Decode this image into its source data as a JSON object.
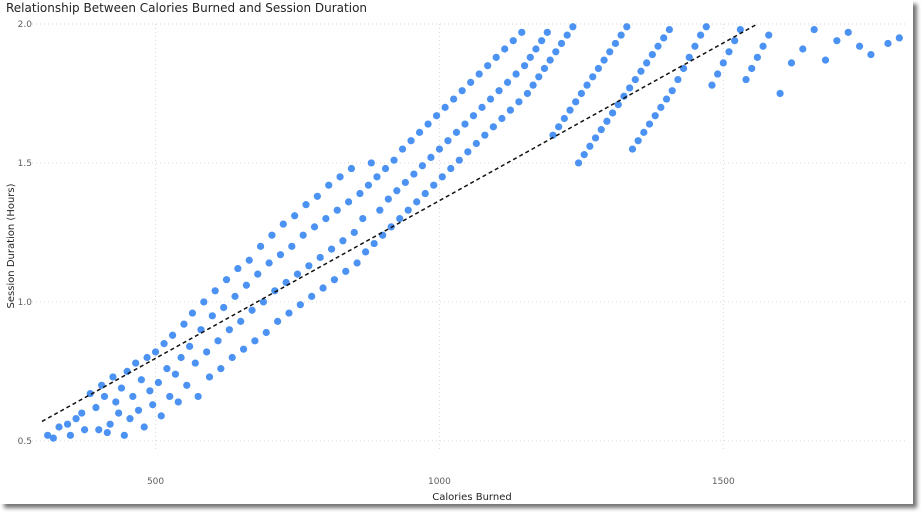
{
  "chart_data": {
    "type": "scatter",
    "title": "Relationship Between Calories Burned and Session Duration",
    "xlabel": "Calories Burned",
    "ylabel": "Session Duration (Hours)",
    "xlim": [
      300,
      1820
    ],
    "ylim": [
      0.46,
      2.0
    ],
    "x_ticks": [
      500,
      1000,
      1500
    ],
    "y_ticks": [
      0.5,
      1.0,
      1.5,
      2.0
    ],
    "x_tick_labels": [
      "500",
      "1000",
      "1500"
    ],
    "y_tick_labels": [
      "0.5",
      "1.0",
      "1.5",
      "2.0"
    ],
    "grid": "dotted",
    "marker_color": "#4b92f2",
    "trendline": {
      "style": "dashed",
      "color": "#111111",
      "points": [
        [
          300,
          0.57
        ],
        [
          1560,
          2.0
        ]
      ]
    },
    "series": [
      {
        "points": [
          [
            310,
            0.52
          ],
          [
            320,
            0.51
          ],
          [
            330,
            0.55
          ],
          [
            345,
            0.56
          ],
          [
            350,
            0.52
          ],
          [
            360,
            0.58
          ],
          [
            370,
            0.6
          ],
          [
            375,
            0.54
          ],
          [
            385,
            0.67
          ],
          [
            395,
            0.62
          ],
          [
            400,
            0.54
          ],
          [
            405,
            0.7
          ],
          [
            410,
            0.66
          ],
          [
            415,
            0.53
          ],
          [
            420,
            0.56
          ],
          [
            425,
            0.73
          ],
          [
            430,
            0.64
          ],
          [
            435,
            0.6
          ],
          [
            440,
            0.69
          ],
          [
            445,
            0.52
          ],
          [
            450,
            0.75
          ],
          [
            455,
            0.58
          ],
          [
            460,
            0.66
          ],
          [
            465,
            0.78
          ],
          [
            470,
            0.61
          ],
          [
            475,
            0.72
          ],
          [
            480,
            0.55
          ],
          [
            485,
            0.8
          ],
          [
            490,
            0.68
          ],
          [
            495,
            0.63
          ],
          [
            500,
            0.82
          ],
          [
            505,
            0.71
          ],
          [
            510,
            0.59
          ],
          [
            515,
            0.85
          ],
          [
            520,
            0.76
          ],
          [
            525,
            0.66
          ],
          [
            530,
            0.88
          ],
          [
            535,
            0.74
          ],
          [
            540,
            0.64
          ],
          [
            545,
            0.8
          ],
          [
            550,
            0.92
          ],
          [
            555,
            0.7
          ],
          [
            560,
            0.84
          ],
          [
            565,
            0.96
          ],
          [
            570,
            0.78
          ],
          [
            575,
            0.66
          ],
          [
            580,
            0.9
          ],
          [
            585,
            1.0
          ],
          [
            590,
            0.82
          ],
          [
            595,
            0.73
          ],
          [
            600,
            0.95
          ],
          [
            605,
            1.04
          ],
          [
            610,
            0.86
          ],
          [
            615,
            0.76
          ],
          [
            620,
            0.98
          ],
          [
            625,
            1.08
          ],
          [
            630,
            0.9
          ],
          [
            635,
            0.8
          ],
          [
            640,
            1.02
          ],
          [
            645,
            1.12
          ],
          [
            650,
            0.93
          ],
          [
            655,
            0.83
          ],
          [
            660,
            1.06
          ],
          [
            665,
            1.15
          ],
          [
            670,
            0.97
          ],
          [
            675,
            0.86
          ],
          [
            680,
            1.1
          ],
          [
            685,
            1.2
          ],
          [
            690,
            1.0
          ],
          [
            695,
            0.89
          ],
          [
            700,
            1.14
          ],
          [
            705,
            1.24
          ],
          [
            710,
            1.04
          ],
          [
            715,
            0.93
          ],
          [
            720,
            1.17
          ],
          [
            725,
            1.28
          ],
          [
            730,
            1.07
          ],
          [
            735,
            0.96
          ],
          [
            740,
            1.2
          ],
          [
            745,
            1.31
          ],
          [
            750,
            1.1
          ],
          [
            755,
            0.99
          ],
          [
            760,
            1.24
          ],
          [
            765,
            1.35
          ],
          [
            770,
            1.13
          ],
          [
            775,
            1.02
          ],
          [
            780,
            1.27
          ],
          [
            785,
            1.38
          ],
          [
            790,
            1.16
          ],
          [
            795,
            1.05
          ],
          [
            800,
            1.3
          ],
          [
            805,
            1.42
          ],
          [
            810,
            1.19
          ],
          [
            815,
            1.08
          ],
          [
            820,
            1.33
          ],
          [
            825,
            1.45
          ],
          [
            830,
            1.22
          ],
          [
            835,
            1.11
          ],
          [
            840,
            1.36
          ],
          [
            845,
            1.48
          ],
          [
            850,
            1.25
          ],
          [
            855,
            1.14
          ],
          [
            860,
            1.39
          ],
          [
            865,
            1.3
          ],
          [
            870,
            1.18
          ],
          [
            875,
            1.42
          ],
          [
            880,
            1.5
          ],
          [
            885,
            1.21
          ],
          [
            890,
            1.45
          ],
          [
            895,
            1.33
          ],
          [
            900,
            1.24
          ],
          [
            905,
            1.48
          ],
          [
            910,
            1.37
          ],
          [
            915,
            1.27
          ],
          [
            920,
            1.51
          ],
          [
            925,
            1.4
          ],
          [
            930,
            1.3
          ],
          [
            935,
            1.55
          ],
          [
            940,
            1.43
          ],
          [
            945,
            1.33
          ],
          [
            950,
            1.58
          ],
          [
            955,
            1.46
          ],
          [
            960,
            1.36
          ],
          [
            965,
            1.61
          ],
          [
            970,
            1.49
          ],
          [
            975,
            1.39
          ],
          [
            980,
            1.64
          ],
          [
            985,
            1.52
          ],
          [
            990,
            1.42
          ],
          [
            995,
            1.67
          ],
          [
            1000,
            1.55
          ],
          [
            1005,
            1.45
          ],
          [
            1010,
            1.7
          ],
          [
            1015,
            1.58
          ],
          [
            1020,
            1.48
          ],
          [
            1025,
            1.73
          ],
          [
            1030,
            1.61
          ],
          [
            1035,
            1.51
          ],
          [
            1040,
            1.76
          ],
          [
            1045,
            1.64
          ],
          [
            1050,
            1.54
          ],
          [
            1055,
            1.79
          ],
          [
            1060,
            1.67
          ],
          [
            1065,
            1.57
          ],
          [
            1070,
            1.82
          ],
          [
            1075,
            1.7
          ],
          [
            1080,
            1.6
          ],
          [
            1085,
            1.85
          ],
          [
            1090,
            1.73
          ],
          [
            1095,
            1.63
          ],
          [
            1100,
            1.88
          ],
          [
            1105,
            1.76
          ],
          [
            1110,
            1.66
          ],
          [
            1115,
            1.91
          ],
          [
            1120,
            1.79
          ],
          [
            1125,
            1.69
          ],
          [
            1130,
            1.94
          ],
          [
            1135,
            1.82
          ],
          [
            1140,
            1.72
          ],
          [
            1145,
            1.97
          ],
          [
            1150,
            1.85
          ],
          [
            1155,
            1.75
          ],
          [
            1160,
            1.88
          ],
          [
            1165,
            1.78
          ],
          [
            1170,
            1.91
          ],
          [
            1175,
            1.81
          ],
          [
            1180,
            1.94
          ],
          [
            1185,
            1.84
          ],
          [
            1190,
            1.97
          ],
          [
            1195,
            1.87
          ],
          [
            1200,
            1.6
          ],
          [
            1205,
            1.9
          ],
          [
            1210,
            1.63
          ],
          [
            1215,
            1.93
          ],
          [
            1220,
            1.66
          ],
          [
            1225,
            1.96
          ],
          [
            1230,
            1.69
          ],
          [
            1235,
            1.99
          ],
          [
            1240,
            1.72
          ],
          [
            1245,
            1.5
          ],
          [
            1250,
            1.75
          ],
          [
            1255,
            1.53
          ],
          [
            1260,
            1.78
          ],
          [
            1265,
            1.56
          ],
          [
            1270,
            1.81
          ],
          [
            1275,
            1.59
          ],
          [
            1280,
            1.84
          ],
          [
            1285,
            1.62
          ],
          [
            1290,
            1.87
          ],
          [
            1295,
            1.65
          ],
          [
            1300,
            1.9
          ],
          [
            1305,
            1.68
          ],
          [
            1310,
            1.93
          ],
          [
            1315,
            1.71
          ],
          [
            1320,
            1.96
          ],
          [
            1325,
            1.74
          ],
          [
            1330,
            1.99
          ],
          [
            1335,
            1.77
          ],
          [
            1340,
            1.55
          ],
          [
            1345,
            1.8
          ],
          [
            1350,
            1.58
          ],
          [
            1355,
            1.83
          ],
          [
            1360,
            1.61
          ],
          [
            1365,
            1.86
          ],
          [
            1370,
            1.64
          ],
          [
            1375,
            1.89
          ],
          [
            1380,
            1.67
          ],
          [
            1385,
            1.92
          ],
          [
            1390,
            1.7
          ],
          [
            1395,
            1.95
          ],
          [
            1400,
            1.73
          ],
          [
            1405,
            1.98
          ],
          [
            1410,
            1.76
          ],
          [
            1420,
            1.8
          ],
          [
            1430,
            1.84
          ],
          [
            1440,
            1.88
          ],
          [
            1450,
            1.92
          ],
          [
            1460,
            1.96
          ],
          [
            1470,
            1.99
          ],
          [
            1480,
            1.78
          ],
          [
            1490,
            1.82
          ],
          [
            1500,
            1.86
          ],
          [
            1510,
            1.9
          ],
          [
            1520,
            1.94
          ],
          [
            1530,
            1.98
          ],
          [
            1540,
            1.8
          ],
          [
            1550,
            1.84
          ],
          [
            1560,
            1.88
          ],
          [
            1570,
            1.92
          ],
          [
            1580,
            1.96
          ],
          [
            1600,
            1.75
          ],
          [
            1620,
            1.86
          ],
          [
            1640,
            1.91
          ],
          [
            1660,
            1.98
          ],
          [
            1680,
            1.87
          ],
          [
            1700,
            1.94
          ],
          [
            1720,
            1.97
          ],
          [
            1740,
            1.92
          ],
          [
            1760,
            1.89
          ],
          [
            1790,
            1.93
          ],
          [
            1810,
            1.95
          ]
        ]
      }
    ]
  }
}
